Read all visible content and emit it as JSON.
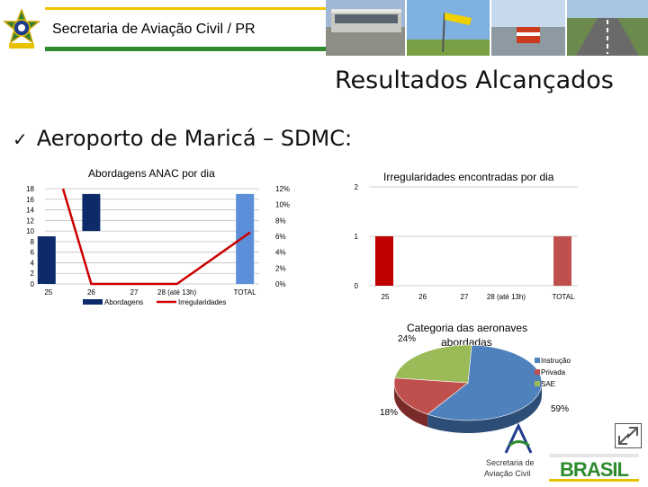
{
  "header": {
    "title": "Secretaria de Aviação Civil / PR"
  },
  "slide": {
    "title": "Resultados Alcançados",
    "bullet": "Aeroporto de Maricá – SDMC:"
  },
  "footer": {
    "logo_text_line1": "Secretaria de",
    "logo_text_line2": "Aviação Civil",
    "brand_text": "BRASIL"
  },
  "chart_data": [
    {
      "type": "bar",
      "title": "Abordagens ANAC por dia",
      "categories": [
        "25",
        "26",
        "27",
        "28 (até 13h)",
        "TOTAL"
      ],
      "y_ticks": [
        "18",
        "16",
        "14",
        "12",
        "10",
        "8",
        "6",
        "4",
        "2",
        "0"
      ],
      "y2_ticks": [
        "12%",
        "10%",
        "8%",
        "6%",
        "4%",
        "2%",
        "0%"
      ],
      "ylim": [
        0,
        18
      ],
      "y2lim": [
        0,
        0.12
      ],
      "series": [
        {
          "name": "Abordagens",
          "type": "bar",
          "values": [
            9,
            17,
            null,
            null,
            17
          ],
          "color": "#0d2b6b"
        },
        {
          "name": "Irregularidades",
          "type": "line",
          "axis": "right",
          "values": [
            0.12,
            0,
            0,
            0,
            0.065
          ],
          "color": "#cc0000"
        }
      ],
      "floating_bar": {
        "category": "26",
        "from": 10,
        "to": 17
      },
      "total_bar_color": "#5b8fd9",
      "legend": [
        "Abordagens",
        "Irregularidades"
      ],
      "legend_position": "bottom"
    },
    {
      "type": "bar",
      "title": "Irregularidades encontradas por dia",
      "categories": [
        "25",
        "26",
        "27",
        "28 (até 13h)",
        "TOTAL"
      ],
      "y_ticks": [
        "2",
        "1",
        "0"
      ],
      "ylim": [
        0,
        2
      ],
      "series": [
        {
          "values": [
            1,
            0,
            0,
            0,
            1
          ]
        }
      ],
      "colors": [
        "#c00000",
        "#c0504d"
      ]
    },
    {
      "type": "pie",
      "title": "Categoria das aeronaves abordadas",
      "labels": [
        "Instrução",
        "Privada",
        "SAE"
      ],
      "values": [
        59,
        18,
        24
      ],
      "value_labels": [
        "59%",
        "18%",
        "24%"
      ],
      "colors": [
        "#4f81bd",
        "#c0504d",
        "#9bbb59"
      ],
      "legend_position": "right"
    }
  ]
}
